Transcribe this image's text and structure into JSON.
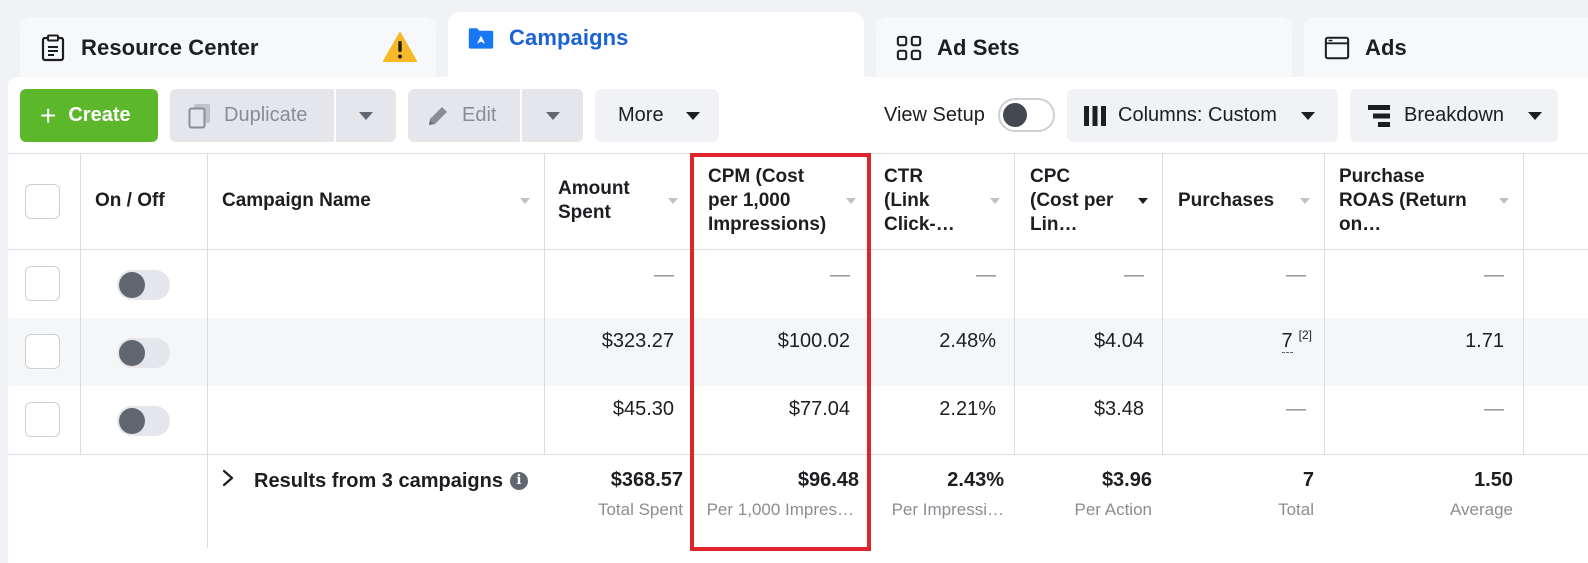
{
  "tabs": [
    {
      "label": "Resource Center",
      "icon": "clipboard-icon",
      "warning": true
    },
    {
      "label": "Campaigns",
      "icon": "folder-icon",
      "active": true
    },
    {
      "label": "Ad Sets",
      "icon": "grid-icon"
    },
    {
      "label": "Ads",
      "icon": "window-icon"
    }
  ],
  "toolbar": {
    "create_label": "Create",
    "duplicate_label": "Duplicate",
    "edit_label": "Edit",
    "more_label": "More",
    "view_setup_label": "View Setup",
    "columns_label": "Columns: Custom",
    "breakdown_label": "Breakdown"
  },
  "table": {
    "headers": {
      "on_off": "On / Off",
      "campaign_name": "Campaign Name",
      "amount_spent": "Amount Spent",
      "cpm": "CPM (Cost per 1,000 Impressions)",
      "ctr": "CTR (Link Click-…",
      "cpc": "CPC (Cost per Lin…",
      "purchases": "Purchases",
      "roas": "Purchase ROAS (Return on…"
    },
    "rows": [
      {
        "amount": "—",
        "cpm": "—",
        "ctr": "—",
        "cpc": "—",
        "purchases": "—",
        "roas": "—"
      },
      {
        "amount": "$323.27",
        "cpm": "$100.02",
        "ctr": "2.48%",
        "cpc": "$4.04",
        "purchases": "7",
        "purchases_note": "[2]",
        "roas": "1.71"
      },
      {
        "amount": "$45.30",
        "cpm": "$77.04",
        "ctr": "2.21%",
        "cpc": "$3.48",
        "purchases": "—",
        "roas": "—"
      }
    ],
    "totals": {
      "results_label": "Results from 3 campaigns",
      "amount": "$368.57",
      "amount_sub": "Total Spent",
      "cpm": "$96.48",
      "cpm_sub": "Per 1,000 Impres…",
      "ctr": "2.43%",
      "ctr_sub": "Per Impressi…",
      "cpc": "$3.96",
      "cpc_sub": "Per Action",
      "purchases": "7",
      "purchases_sub": "Total",
      "roas": "1.50",
      "roas_sub": "Average"
    }
  },
  "colors": {
    "accent": "#1b63d2",
    "create": "#5cb82a",
    "highlight": "#e0242b"
  }
}
